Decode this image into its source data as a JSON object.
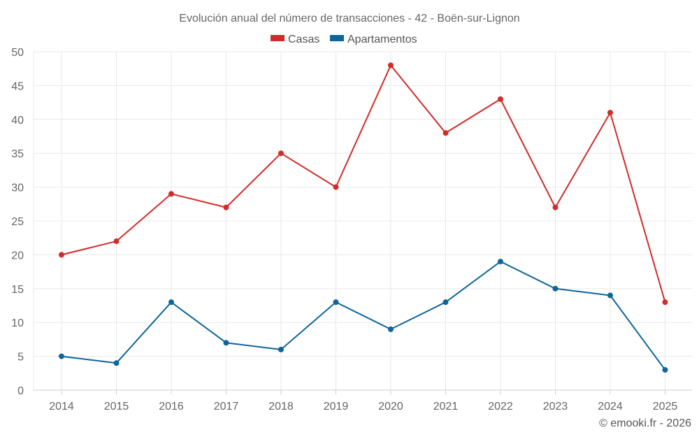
{
  "chart_data": {
    "type": "line",
    "title": "Evolución anual del número de transacciones - 42 - Boën-sur-Lignon",
    "categories": [
      "2014",
      "2015",
      "2016",
      "2017",
      "2018",
      "2019",
      "2020",
      "2021",
      "2022",
      "2023",
      "2024",
      "2025"
    ],
    "series": [
      {
        "name": "Casas",
        "color": "#d22b2b",
        "values": [
          20,
          22,
          29,
          27,
          35,
          30,
          48,
          38,
          43,
          27,
          41,
          13
        ]
      },
      {
        "name": "Apartamentos",
        "color": "#0d6699",
        "values": [
          5,
          4,
          13,
          7,
          6,
          13,
          9,
          13,
          19,
          15,
          14,
          3
        ]
      }
    ],
    "ylim": [
      0,
      50
    ],
    "yticks": [
      0,
      5,
      10,
      15,
      20,
      25,
      30,
      35,
      40,
      45,
      50
    ],
    "legend": "top-center",
    "grid": true,
    "xlabel": "",
    "ylabel": ""
  },
  "footer": "© emooki.fr - 2026"
}
